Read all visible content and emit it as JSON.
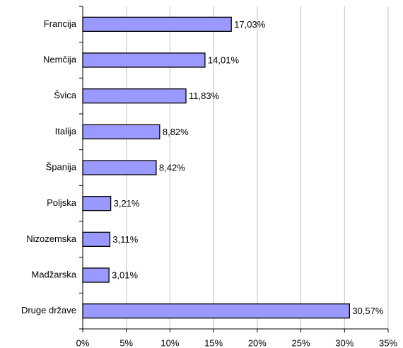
{
  "chart_data": {
    "type": "bar",
    "orientation": "horizontal",
    "categories": [
      "Francija",
      "Nemčija",
      "Švica",
      "Italija",
      "Španija",
      "Poljska",
      "Nizozemska",
      "Madžarska",
      "Druge države"
    ],
    "values": [
      17.03,
      14.01,
      11.83,
      8.82,
      8.42,
      3.21,
      3.11,
      3.01,
      30.57
    ],
    "value_labels": [
      "17,03%",
      "14,01%",
      "11,83%",
      "8,82%",
      "8,42%",
      "3,21%",
      "3,11%",
      "3,01%",
      "30,57%"
    ],
    "color": "#9999ff",
    "xlim": [
      0,
      35
    ],
    "xticks": [
      {
        "value": 0,
        "label": "0%"
      },
      {
        "value": 5,
        "label": "5%"
      },
      {
        "value": 10,
        "label": "10%"
      },
      {
        "value": 15,
        "label": "15%"
      },
      {
        "value": 20,
        "label": "20%"
      },
      {
        "value": 25,
        "label": "25%"
      },
      {
        "value": 30,
        "label": "30%"
      },
      {
        "value": 35,
        "label": "35%"
      }
    ],
    "grid": true
  }
}
